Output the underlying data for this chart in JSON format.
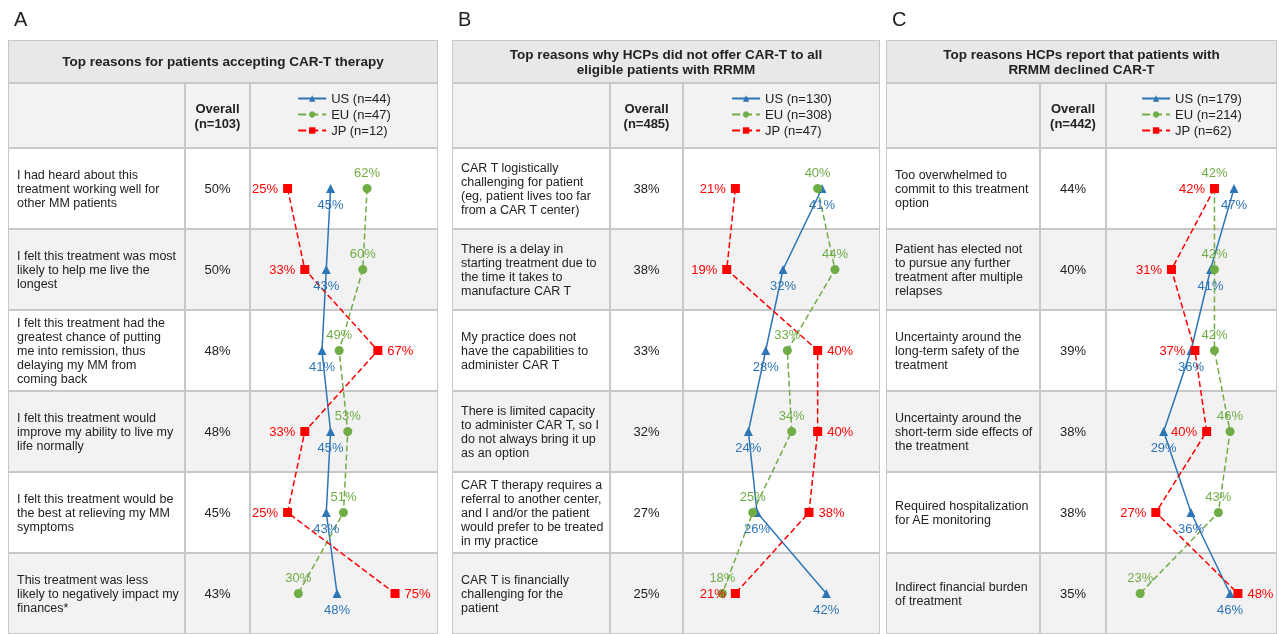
{
  "chart_data": [
    {
      "type": "line",
      "title": "Top reasons for patients accepting CAR-T therapy",
      "orientation": "horizontal",
      "categories": [
        "I had heard about this treatment working well for other MM patients",
        "I felt this treatment was most likely to help me live the longest",
        "I felt this treatment had the greatest chance of putting me into remission, thus delaying my MM from coming back",
        "I felt this treatment would improve my ability to live my life normally",
        "I felt this treatment would be the best at relieving my MM symptoms",
        "This treatment was less likely to negatively impact my finances*"
      ],
      "series": [
        {
          "name": "US (n=44)",
          "color": "#2e75b6",
          "marker": "triangle",
          "line_style": "solid",
          "values": [
            45,
            43,
            41,
            45,
            43,
            48
          ],
          "value_labels": [
            "45%",
            "43%",
            "41%",
            "45%",
            "43%",
            "48%"
          ]
        },
        {
          "name": "EU (n=47)",
          "color": "#70ad47",
          "marker": "circle",
          "line_style": "dashed",
          "values": [
            62,
            60,
            49,
            53,
            51,
            30
          ],
          "value_labels": [
            "62%",
            "60%",
            "49%",
            "53%",
            "51%",
            "30%"
          ]
        },
        {
          "name": "JP (n=12)",
          "color": "#ff0000",
          "marker": "square",
          "line_style": "dashed",
          "values": [
            25,
            33,
            67,
            33,
            25,
            75
          ],
          "value_labels": [
            "25%",
            "33%",
            "67%",
            "33%",
            "25%",
            "75%"
          ]
        }
      ],
      "tick_labels": false,
      "legend": "top",
      "annotations": [
        "A",
        "Overall (n=103)",
        "50%",
        "50%",
        "48%",
        "48%",
        "45%",
        "43%"
      ]
    },
    {
      "type": "line",
      "title": "Top reasons why HCPs did not offer CAR-T to all eligible patients with RRMM",
      "orientation": "horizontal",
      "categories": [
        "CAR T logistically challenging for patient (eg, patient lives too far from a CAR T center)",
        "There is a delay in starting treatment due to the time it takes to manufacture CAR T",
        "My practice does not have the capabilities to administer CAR T",
        "There is limited capacity to administer CAR T, so I do not always bring it up as an option",
        "CAR T therapy requires a referral to another center, and I and/or the patient would prefer to be treated in my practice",
        "CAR T is financially challenging for the patient"
      ],
      "series": [
        {
          "name": "US (n=130)",
          "color": "#2e75b6",
          "marker": "triangle",
          "line_style": "solid",
          "values": [
            41,
            32,
            28,
            24,
            26,
            42
          ],
          "value_labels": [
            "41%",
            "32%",
            "28%",
            "24%",
            "26%",
            "42%"
          ]
        },
        {
          "name": "EU (n=308)",
          "color": "#70ad47",
          "marker": "circle",
          "line_style": "dashed",
          "values": [
            40,
            44,
            33,
            34,
            25,
            18
          ],
          "value_labels": [
            "40%",
            "44%",
            "33%",
            "34%",
            "25%",
            "18%"
          ]
        },
        {
          "name": "JP (n=47)",
          "color": "#ff0000",
          "marker": "square",
          "line_style": "dashed",
          "values": [
            21,
            19,
            40,
            40,
            38,
            21
          ],
          "value_labels": [
            "21%",
            "19%",
            "40%",
            "40%",
            "38%",
            "21%"
          ]
        }
      ],
      "tick_labels": false,
      "legend": "top",
      "annotations": [
        "B",
        "Overall (n=485)",
        "38%",
        "38%",
        "33%",
        "32%",
        "27%",
        "25%"
      ]
    },
    {
      "type": "line",
      "title": "Top reasons HCPs report that patients with RRMM declined CAR-T",
      "orientation": "horizontal",
      "categories": [
        "Too overwhelmed to commit to this treatment option",
        "Patient has elected not to pursue any further treatment after multiple relapses",
        "Uncertainty around the long-term safety of the treatment",
        "Uncertainty around the short-term side effects of the treatment",
        "Required hospitalization for AE monitoring",
        "Indirect financial burden of treatment"
      ],
      "series": [
        {
          "name": "US (n=179)",
          "color": "#2e75b6",
          "marker": "triangle",
          "line_style": "solid",
          "values": [
            47,
            41,
            36,
            29,
            36,
            46
          ],
          "value_labels": [
            "47%",
            "41%",
            "36%",
            "29%",
            "36%",
            "46%"
          ]
        },
        {
          "name": "EU (n=214)",
          "color": "#70ad47",
          "marker": "circle",
          "line_style": "dashed",
          "values": [
            42,
            42,
            42,
            46,
            43,
            23
          ],
          "value_labels": [
            "42%",
            "42%",
            "42%",
            "46%",
            "43%",
            "23%"
          ]
        },
        {
          "name": "JP (n=62)",
          "color": "#ff0000",
          "marker": "square",
          "line_style": "dashed",
          "values": [
            42,
            31,
            37,
            40,
            27,
            48
          ],
          "value_labels": [
            "42%",
            "31%",
            "37%",
            "40%",
            "27%",
            "48%"
          ]
        }
      ],
      "tick_labels": false,
      "legend": "top",
      "annotations": [
        "C",
        "Overall (n=442)",
        "44%",
        "40%",
        "39%",
        "38%",
        "38%",
        "35%"
      ]
    }
  ]
}
